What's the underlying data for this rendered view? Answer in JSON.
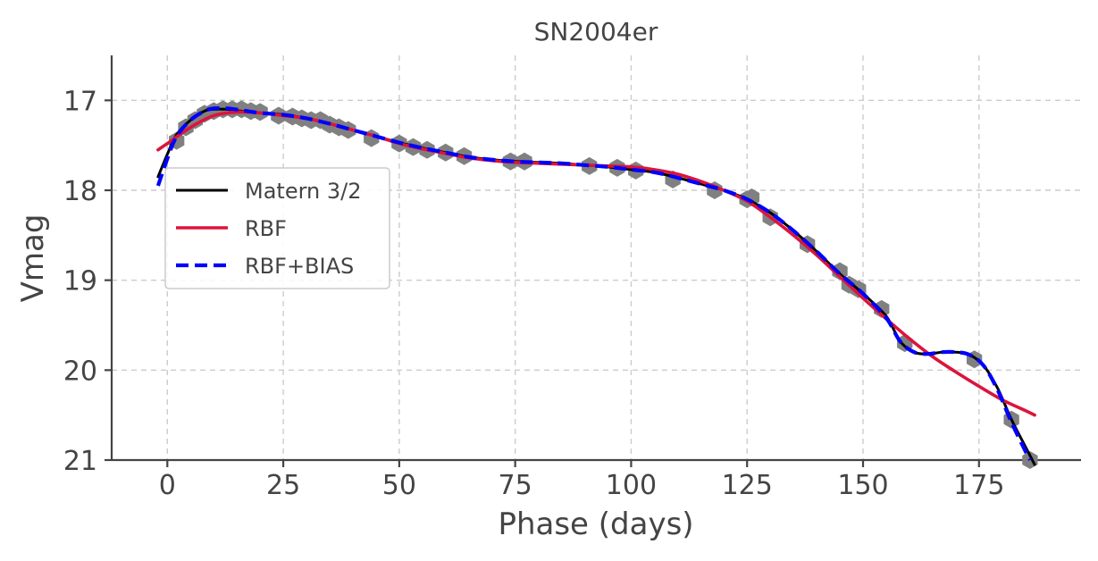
{
  "chart_data": {
    "type": "line",
    "title": "SN2004er",
    "xlabel": "Phase (days)",
    "ylabel": "Vmag",
    "xlim": [
      -12,
      197
    ],
    "ylim": [
      21,
      16.5
    ],
    "y_inverted": true,
    "grid": true,
    "legend_position": "upper-left",
    "x_ticks": [
      0,
      25,
      50,
      75,
      100,
      125,
      150,
      175
    ],
    "y_ticks": [
      17,
      18,
      19,
      20,
      21
    ],
    "observations": {
      "name": "observed",
      "color": "#808080",
      "marker": "hexagon",
      "x": [
        2,
        4,
        6,
        8,
        10,
        12,
        14,
        16,
        18,
        20,
        24,
        27,
        29,
        31,
        33,
        35,
        37,
        39,
        44,
        50,
        53,
        56,
        60,
        64,
        74,
        77,
        91,
        97,
        101,
        109,
        118,
        125,
        126,
        130,
        138,
        145,
        147,
        149,
        154,
        159,
        174,
        182,
        186
      ],
      "y": [
        17.45,
        17.3,
        17.22,
        17.15,
        17.12,
        17.1,
        17.1,
        17.1,
        17.12,
        17.13,
        17.17,
        17.18,
        17.2,
        17.22,
        17.22,
        17.27,
        17.3,
        17.33,
        17.42,
        17.48,
        17.52,
        17.55,
        17.58,
        17.62,
        17.68,
        17.68,
        17.73,
        17.75,
        17.78,
        17.88,
        18.0,
        18.1,
        18.08,
        18.3,
        18.6,
        18.9,
        19.05,
        19.1,
        19.32,
        19.7,
        19.88,
        20.55,
        21.0
      ]
    },
    "series": [
      {
        "name": "Matern 3/2",
        "color": "#000000",
        "style": "solid",
        "x": [
          -2,
          0,
          2,
          5,
          8,
          10,
          13,
          16,
          20,
          25,
          30,
          35,
          40,
          45,
          50,
          55,
          60,
          65,
          70,
          75,
          80,
          85,
          90,
          95,
          100,
          105,
          110,
          115,
          120,
          125,
          130,
          135,
          140,
          145,
          150,
          155,
          158,
          161,
          164,
          167,
          170,
          173,
          176,
          179,
          182,
          185,
          187
        ],
        "y": [
          17.85,
          17.6,
          17.38,
          17.22,
          17.12,
          17.1,
          17.1,
          17.12,
          17.14,
          17.16,
          17.2,
          17.26,
          17.33,
          17.4,
          17.47,
          17.53,
          17.58,
          17.63,
          17.66,
          17.68,
          17.69,
          17.7,
          17.72,
          17.74,
          17.77,
          17.8,
          17.86,
          17.93,
          18.0,
          18.1,
          18.25,
          18.45,
          18.68,
          18.93,
          19.15,
          19.4,
          19.68,
          19.8,
          19.82,
          19.8,
          19.8,
          19.83,
          19.95,
          20.2,
          20.55,
          20.85,
          21.05
        ]
      },
      {
        "name": "RBF",
        "color": "#dc143c",
        "style": "solid",
        "x": [
          -2,
          0,
          5,
          10,
          15,
          20,
          25,
          30,
          35,
          40,
          45,
          50,
          55,
          60,
          65,
          70,
          75,
          80,
          85,
          90,
          95,
          100,
          105,
          110,
          115,
          120,
          125,
          130,
          135,
          140,
          145,
          150,
          155,
          160,
          165,
          170,
          175,
          180,
          185,
          187
        ],
        "y": [
          17.55,
          17.48,
          17.3,
          17.17,
          17.13,
          17.14,
          17.17,
          17.2,
          17.26,
          17.33,
          17.4,
          17.48,
          17.54,
          17.59,
          17.64,
          17.67,
          17.69,
          17.7,
          17.71,
          17.72,
          17.73,
          17.74,
          17.77,
          17.82,
          17.9,
          18.0,
          18.12,
          18.3,
          18.5,
          18.72,
          18.96,
          19.2,
          19.43,
          19.65,
          19.85,
          20.02,
          20.18,
          20.33,
          20.45,
          20.5
        ]
      },
      {
        "name": "RBF+BIAS",
        "color": "#0000ff",
        "style": "dashed",
        "x": [
          -2,
          0,
          2,
          5,
          8,
          10,
          13,
          16,
          20,
          25,
          30,
          35,
          40,
          45,
          50,
          55,
          60,
          65,
          70,
          75,
          80,
          85,
          90,
          95,
          100,
          105,
          110,
          115,
          120,
          125,
          130,
          135,
          140,
          145,
          150,
          155,
          158,
          161,
          164,
          167,
          170,
          173,
          176,
          179,
          182,
          185,
          186
        ],
        "y": [
          17.95,
          17.65,
          17.4,
          17.22,
          17.12,
          17.09,
          17.09,
          17.11,
          17.14,
          17.16,
          17.2,
          17.26,
          17.33,
          17.4,
          17.47,
          17.53,
          17.58,
          17.63,
          17.66,
          17.68,
          17.69,
          17.7,
          17.72,
          17.74,
          17.77,
          17.8,
          17.86,
          17.93,
          18.0,
          18.1,
          18.25,
          18.45,
          18.68,
          18.93,
          19.15,
          19.42,
          19.68,
          19.8,
          19.82,
          19.8,
          19.8,
          19.83,
          19.95,
          20.22,
          20.58,
          20.9,
          21.0
        ]
      }
    ]
  }
}
